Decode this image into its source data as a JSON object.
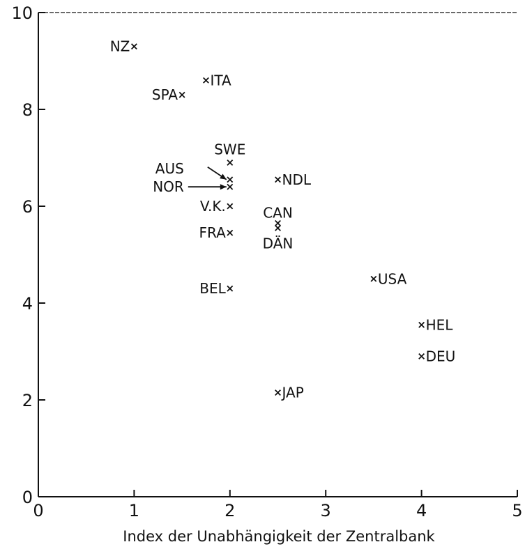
{
  "chart_data": {
    "type": "scatter",
    "title": "",
    "xlabel": "Index der Unabhängigkeit der Zentralbank",
    "ylabel": "",
    "xlim": [
      0,
      5
    ],
    "ylim": [
      0,
      10
    ],
    "x_ticks": [
      "0",
      "1",
      "2",
      "3",
      "4",
      "5"
    ],
    "y_ticks": [
      "0",
      "2",
      "4",
      "6",
      "8",
      "10"
    ],
    "grid": false,
    "marker": "×",
    "points": [
      {
        "label": "NZ",
        "x": 1.0,
        "y": 9.3
      },
      {
        "label": "ITA",
        "x": 1.75,
        "y": 8.6
      },
      {
        "label": "SPA",
        "x": 1.5,
        "y": 8.3
      },
      {
        "label": "SWE",
        "x": 2.0,
        "y": 6.9
      },
      {
        "label": "AUS",
        "x": 2.0,
        "y": 6.55
      },
      {
        "label": "NOR",
        "x": 2.0,
        "y": 6.4
      },
      {
        "label": "NDL",
        "x": 2.5,
        "y": 6.55
      },
      {
        "label": "V.K.",
        "x": 2.0,
        "y": 6.0
      },
      {
        "label": "CAN",
        "x": 2.5,
        "y": 5.65
      },
      {
        "label": "DÄN",
        "x": 2.5,
        "y": 5.55
      },
      {
        "label": "FRA",
        "x": 2.0,
        "y": 5.45
      },
      {
        "label": "USA",
        "x": 3.5,
        "y": 4.5
      },
      {
        "label": "BEL",
        "x": 2.0,
        "y": 4.3
      },
      {
        "label": "HEL",
        "x": 4.0,
        "y": 3.55
      },
      {
        "label": "DEU",
        "x": 4.0,
        "y": 2.9
      },
      {
        "label": "JAP",
        "x": 2.5,
        "y": 2.15
      }
    ]
  }
}
